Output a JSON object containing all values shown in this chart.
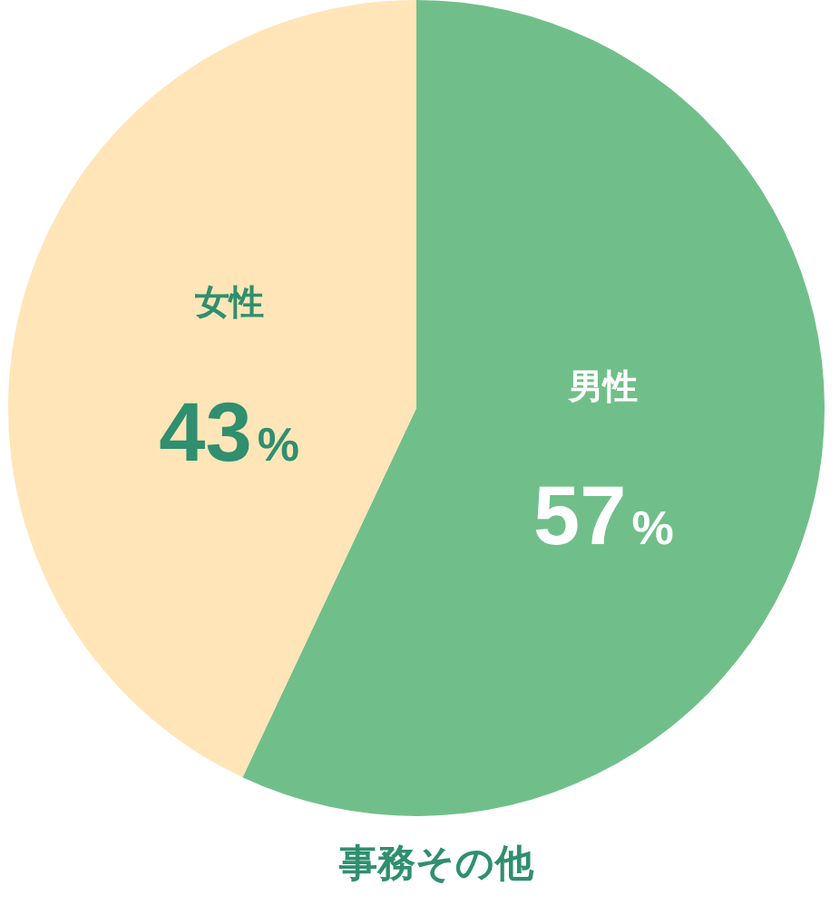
{
  "chart_data": {
    "type": "pie",
    "title": "事務その他",
    "categories": [
      "男性",
      "女性"
    ],
    "values": [
      57,
      43
    ],
    "colors": [
      "#70bf8a",
      "#ffe5b7"
    ],
    "value_labels": [
      "57%",
      "43%"
    ],
    "legend": false
  }
}
